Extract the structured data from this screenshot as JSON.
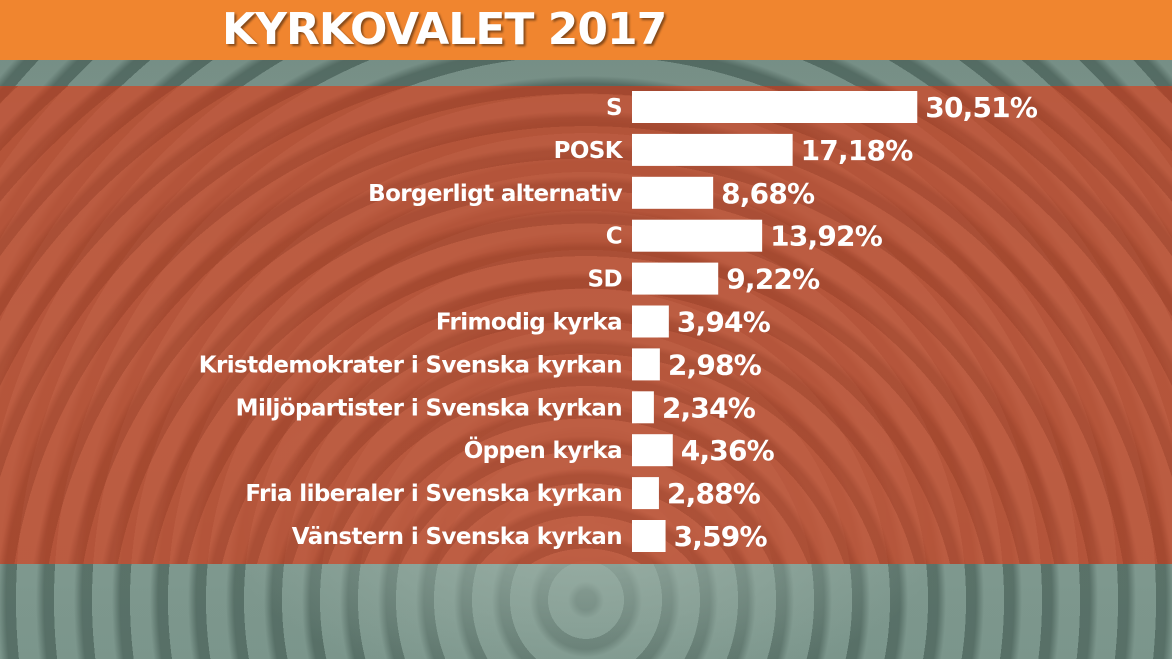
{
  "title": "KYRKOVALET 2017",
  "colors": {
    "header": "#f0852f",
    "panel": "#c84e30",
    "bar": "#ffffff",
    "text": "#ffffff"
  },
  "chart_data": {
    "type": "bar",
    "orientation": "horizontal",
    "title": "KYRKOVALET 2017",
    "categories": [
      "S",
      "POSK",
      "Borgerligt alternativ",
      "C",
      "SD",
      "Frimodig kyrka",
      "Kristdemokrater i Svenska kyrkan",
      "Miljöpartister i Svenska kyrkan",
      "Öppen kyrka",
      "Fria liberaler i Svenska kyrkan",
      "Vänstern i Svenska kyrkan"
    ],
    "values": [
      30.51,
      17.18,
      8.68,
      13.92,
      9.22,
      3.94,
      2.98,
      2.34,
      4.36,
      2.88,
      3.59
    ],
    "value_labels": [
      "30,51%",
      "17,18%",
      "8,68%",
      "13,92%",
      "9,22%",
      "3,94%",
      "2,98%",
      "2,34%",
      "4,36%",
      "2,88%",
      "3,59%"
    ],
    "unit": "%",
    "grid": false,
    "legend": "none"
  }
}
